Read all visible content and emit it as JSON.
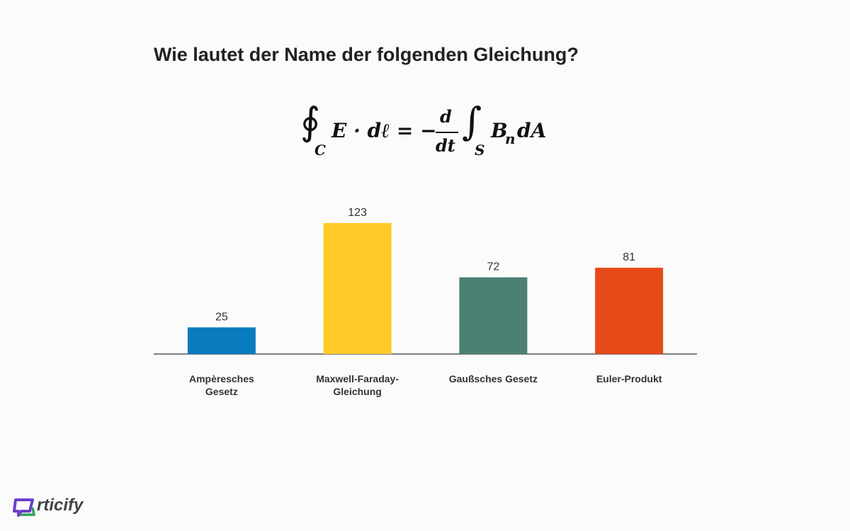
{
  "question": "Wie lautet der Name der folgenden Gleichung?",
  "formula": {
    "integral1": "∮",
    "sub1": "C",
    "part1": "E · dℓ = −",
    "num": "d",
    "den": "dt",
    "integral2": "∫",
    "sub2": "S",
    "base": "B",
    "sub3": "n",
    "part2": "dA"
  },
  "chart_data": {
    "type": "bar",
    "categories": [
      "Ampèresches Gesetz",
      "Maxwell-Faraday-Gleichung",
      "Gaußsches Gesetz",
      "Euler-Produkt"
    ],
    "values": [
      25,
      123,
      72,
      81
    ],
    "colors": [
      "#0a7bbd",
      "#ffca29",
      "#4b8075",
      "#e64a19"
    ]
  },
  "logo": "rticify"
}
